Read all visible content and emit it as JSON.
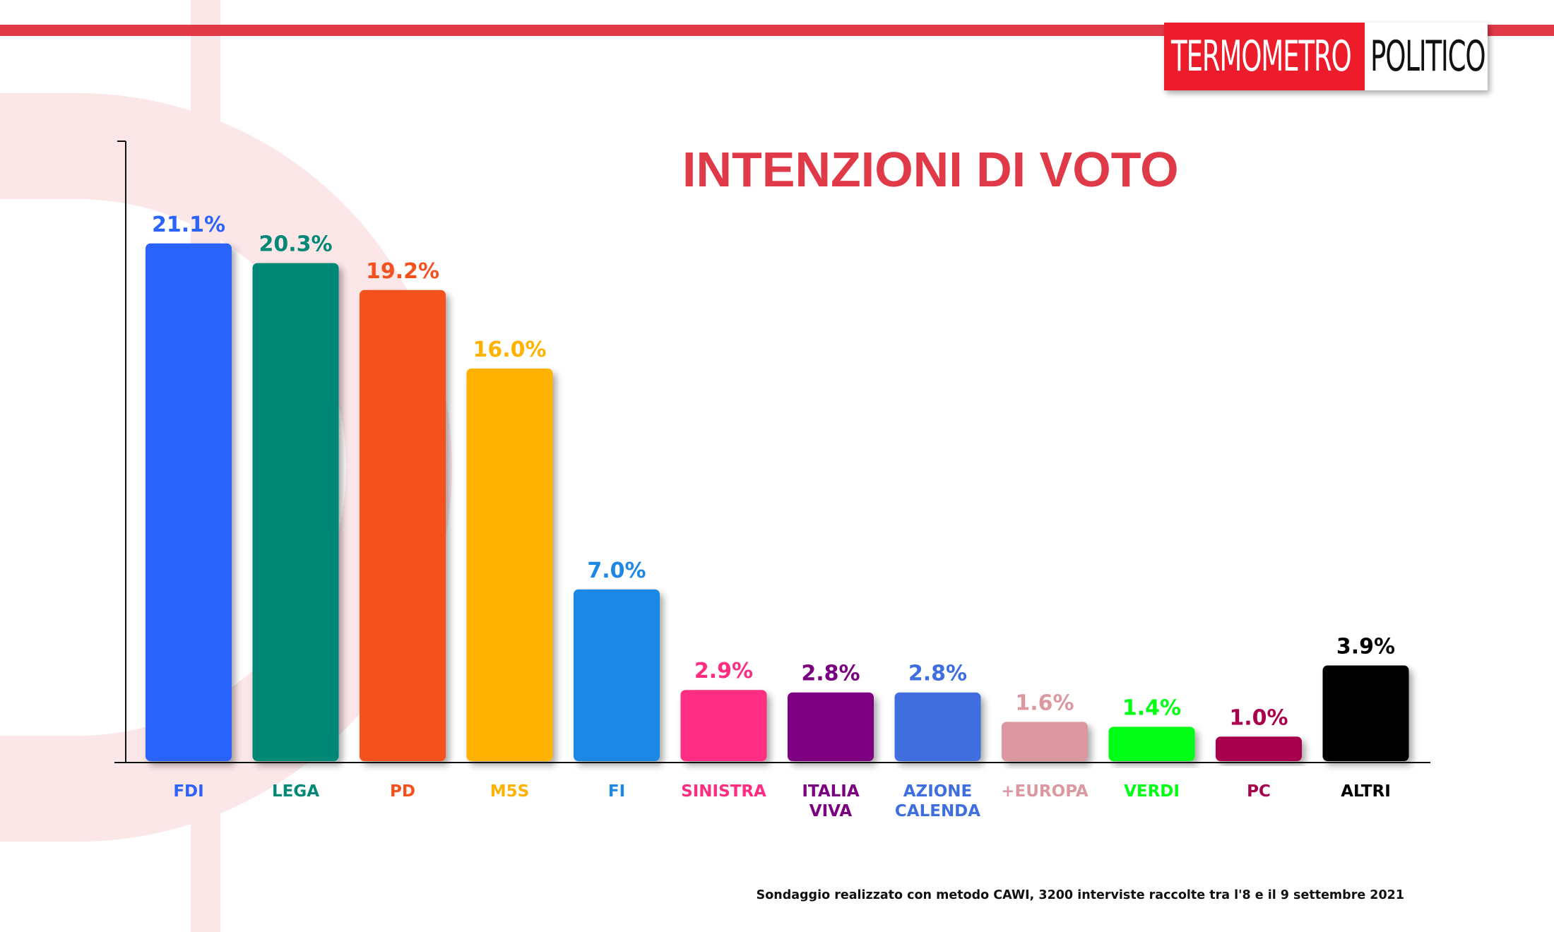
{
  "brand": {
    "logo_part1": "TERMOMETRO",
    "logo_part2": "POLITICO",
    "red": "#ec1c2a",
    "accent": "#e03a48"
  },
  "footnote": "Sondaggio realizzato con metodo CAWI, 3200 interviste raccolte tra l'8 e il 9 settembre 2021",
  "chart_data": {
    "type": "bar",
    "title": "INTENZIONI DI VOTO",
    "xlabel": "",
    "ylabel": "",
    "ylim": [
      0,
      25
    ],
    "grid": false,
    "categories": [
      "FDI",
      "LEGA",
      "PD",
      "M5S",
      "FI",
      "SINISTRA",
      "ITALIA VIVA",
      "AZIONE CALENDA",
      "+EUROPA",
      "VERDI",
      "PC",
      "ALTRI"
    ],
    "category_lines": [
      [
        "FDI"
      ],
      [
        "LEGA"
      ],
      [
        "PD"
      ],
      [
        "M5S"
      ],
      [
        "FI"
      ],
      [
        "SINISTRA"
      ],
      [
        "ITALIA",
        "VIVA"
      ],
      [
        "AZIONE",
        "CALENDA"
      ],
      [
        "+EUROPA"
      ],
      [
        "VERDI"
      ],
      [
        "PC"
      ],
      [
        "ALTRI"
      ]
    ],
    "values": [
      21.1,
      20.3,
      19.2,
      16.0,
      7.0,
      2.9,
      2.8,
      2.8,
      1.6,
      1.4,
      1.0,
      3.9
    ],
    "value_labels": [
      "21.1%",
      "20.3%",
      "19.2%",
      "16.0%",
      "7.0%",
      "2.9%",
      "2.8%",
      "2.8%",
      "1.6%",
      "1.4%",
      "1.0%",
      "3.9%"
    ],
    "colors": [
      "#2c63fb",
      "#018877",
      "#f4511f",
      "#ffb300",
      "#1e88e5",
      "#ff2d82",
      "#7b0080",
      "#3f6ede",
      "#dc98a0",
      "#00ff12",
      "#a8004d",
      "#000000"
    ]
  }
}
